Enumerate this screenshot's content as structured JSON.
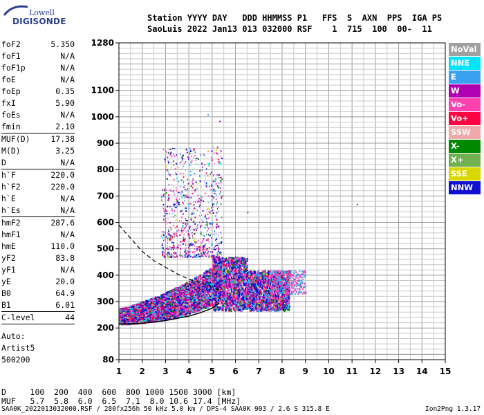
{
  "logo": {
    "line1": "Lowell",
    "line2": "DIGISONDE"
  },
  "header": {
    "line1": "Station YYYY DAY   DDD HHMMSS P1   FFS  S  AXN  PPS  IGA PS",
    "line2": "SaoLuis 2022 Jan13 013 032000 RSF    1  715  100  00-  11"
  },
  "params_groups": [
    [
      {
        "k": "foF2",
        "v": "5.350"
      },
      {
        "k": "foF1",
        "v": "N/A"
      },
      {
        "k": "foF1p",
        "v": "N/A"
      },
      {
        "k": "foE",
        "v": "N/A"
      },
      {
        "k": "foEp",
        "v": "0.35"
      },
      {
        "k": "fxI",
        "v": "5.90"
      },
      {
        "k": "foEs",
        "v": "N/A"
      },
      {
        "k": "fmin",
        "v": "2.10"
      }
    ],
    [
      {
        "k": "MUF(D)",
        "v": "17.38"
      },
      {
        "k": "M(D)",
        "v": "3.25"
      },
      {
        "k": "D",
        "v": "N/A"
      }
    ],
    [
      {
        "k": "h`F",
        "v": "220.0"
      },
      {
        "k": "h`F2",
        "v": "220.0"
      },
      {
        "k": "h`E",
        "v": "N/A"
      },
      {
        "k": "h`Es",
        "v": "N/A"
      }
    ],
    [
      {
        "k": "hmF2",
        "v": "287.6"
      },
      {
        "k": "hmF1",
        "v": "N/A"
      },
      {
        "k": "hmE",
        "v": "110.0"
      },
      {
        "k": "yF2",
        "v": "83.8"
      },
      {
        "k": "yF1",
        "v": "N/A"
      },
      {
        "k": "yE",
        "v": "20.0"
      },
      {
        "k": "B0",
        "v": "64.9"
      },
      {
        "k": "B1",
        "v": "6.01"
      }
    ],
    [
      {
        "k": "C-level",
        "v": "44"
      }
    ]
  ],
  "auto": {
    "line1": "Auto:",
    "line2": "Artist5",
    "line3": "500200"
  },
  "legend": [
    {
      "label": "NoVal",
      "color": "#a0a0a0"
    },
    {
      "label": "NNE",
      "color": "#00e5ff"
    },
    {
      "label": "E",
      "color": "#3aa0f0"
    },
    {
      "label": "W",
      "color": "#b000b0"
    },
    {
      "label": "Vo-",
      "color": "#ff40b0"
    },
    {
      "label": "Vo+",
      "color": "#ff0040"
    },
    {
      "label": "SSW",
      "color": "#f0a8a8"
    },
    {
      "label": "X-",
      "color": "#008800"
    },
    {
      "label": "X+",
      "color": "#70b050"
    },
    {
      "label": "SSE",
      "color": "#d8d800"
    },
    {
      "label": "NNW",
      "color": "#1010d0"
    }
  ],
  "bottom": {
    "d_row": "D     100  200  400  600  800 1000 1500 3000 [km]",
    "muf_row": "MUF   5.7  5.8  6.0  6.5  7.1  8.0 10.6 17.4 [MHz]"
  },
  "footer": {
    "left": "SAA0K_2022013032000.RSF / 280fx256h 50 kHz 5.0 km / DPS-4 SAA0K 903 / 2.6 S 315.8 E",
    "right": "Ion2Png 1.3.17"
  },
  "chart_data": {
    "type": "scatter",
    "x_ticks": [
      1,
      2,
      3,
      4,
      5,
      6,
      7,
      8,
      9,
      10,
      11,
      12,
      13,
      14,
      15
    ],
    "y_ticks": [
      80,
      200,
      300,
      400,
      500,
      600,
      700,
      800,
      900,
      1000,
      1100,
      1280
    ],
    "xlim": [
      1,
      15
    ],
    "ylim": [
      80,
      1280
    ],
    "grid": true,
    "profile_dashed": [
      [
        1.0,
        590
      ],
      [
        1.5,
        540
      ],
      [
        2.0,
        490
      ],
      [
        2.5,
        455
      ],
      [
        3.0,
        430
      ],
      [
        3.5,
        405
      ],
      [
        4.0,
        385
      ],
      [
        4.5,
        370
      ],
      [
        5.0,
        355
      ],
      [
        5.4,
        340
      ]
    ],
    "trace_lower_edge": [
      [
        1.0,
        215
      ],
      [
        2.0,
        218
      ],
      [
        3.0,
        228
      ],
      [
        4.0,
        245
      ],
      [
        4.5,
        258
      ],
      [
        5.0,
        275
      ],
      [
        5.3,
        295
      ]
    ]
  }
}
